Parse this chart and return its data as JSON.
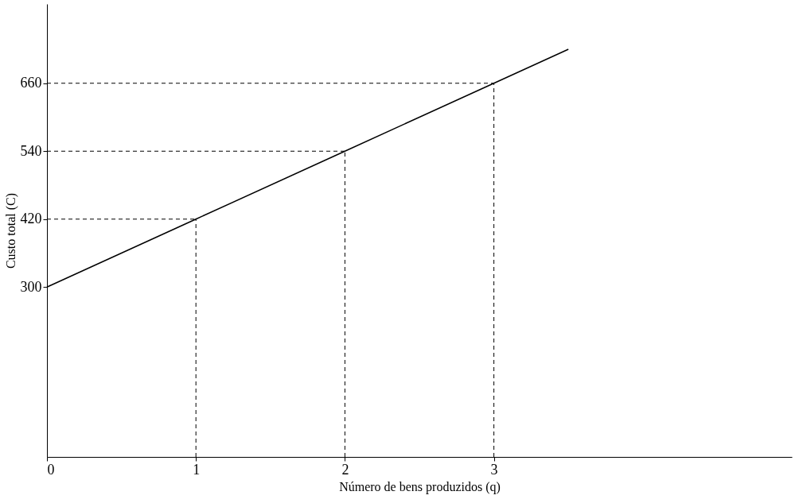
{
  "chart_data": {
    "type": "line",
    "xlabel": "Número de bens produzidos (q)",
    "ylabel": "Custo total (C)",
    "x": [
      0,
      1,
      2,
      3,
      3.5
    ],
    "series": [
      {
        "color": "#000000",
        "values": [
          300,
          420,
          540,
          660,
          720
        ]
      },
      {
        "color": "#000000",
        "x": [
          1,
          1
        ],
        "values": [
          0,
          420
        ],
        "line_style": "dashed"
      },
      {
        "color": "#000000",
        "x": [
          0,
          1
        ],
        "values": [
          420,
          420
        ],
        "line_style": "dashed"
      },
      {
        "color": "#000000",
        "x": [
          2,
          2
        ],
        "values": [
          0,
          540
        ],
        "line_style": "dashed"
      },
      {
        "color": "#000000",
        "x": [
          0,
          2
        ],
        "values": [
          540,
          540
        ],
        "line_style": "dashed"
      },
      {
        "color": "#000000",
        "x": [
          3,
          3
        ],
        "values": [
          0,
          660
        ],
        "line_style": "dashed"
      },
      {
        "color": "#000000",
        "x": [
          0,
          3
        ],
        "values": [
          660,
          660
        ],
        "line_style": "dashed"
      }
    ],
    "xlim": [
      0,
      5
    ],
    "ylim": [
      0,
      800
    ],
    "xticks": [
      0,
      1,
      2,
      3
    ],
    "yticks": [
      300,
      420,
      540,
      660
    ],
    "marker": "none",
    "line_style": "solid"
  }
}
